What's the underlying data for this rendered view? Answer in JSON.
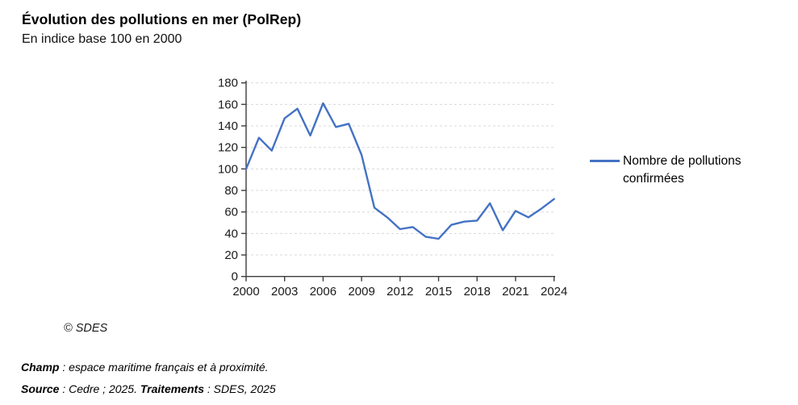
{
  "header": {
    "title": "Évolution des pollutions en mer (PolRep)",
    "subtitle": "En indice base 100 en 2000"
  },
  "legend": {
    "label": "Nombre de pollutions confirmées"
  },
  "chart_data": {
    "type": "line",
    "title": "Évolution des pollutions en mer (PolRep)",
    "subtitle": "En indice base 100 en 2000",
    "x": [
      2000,
      2001,
      2002,
      2003,
      2004,
      2005,
      2006,
      2007,
      2008,
      2009,
      2010,
      2011,
      2012,
      2013,
      2014,
      2015,
      2016,
      2017,
      2018,
      2019,
      2020,
      2021,
      2022,
      2023,
      2024
    ],
    "series": [
      {
        "name": "Nombre de pollutions confirmées",
        "color": "#4472C4",
        "values": [
          100,
          129,
          117,
          147,
          156,
          131,
          161,
          139,
          142,
          113,
          64,
          55,
          44,
          46,
          37,
          35,
          48,
          51,
          52,
          68,
          43,
          61,
          55,
          63,
          72
        ]
      }
    ],
    "xlabel": "",
    "ylabel": "",
    "ylim": [
      0,
      180
    ],
    "yticks": [
      0,
      20,
      40,
      60,
      80,
      100,
      120,
      140,
      160,
      180
    ],
    "xticks": [
      2000,
      2003,
      2006,
      2009,
      2012,
      2015,
      2018,
      2021,
      2024
    ],
    "grid": "horizontal-dashed",
    "grid_color": "#d8d8d8",
    "axis_color": "#3c3c3c",
    "legend_position": "right"
  },
  "footer": {
    "copyright": "© SDES",
    "champ_label": "Champ",
    "champ_text": " : espace maritime français et à proximité.",
    "source_label": "Source",
    "source_text": " : Cedre ; 2025. ",
    "traitements_label": "Traitements",
    "traitements_text": " : SDES, 2025"
  }
}
